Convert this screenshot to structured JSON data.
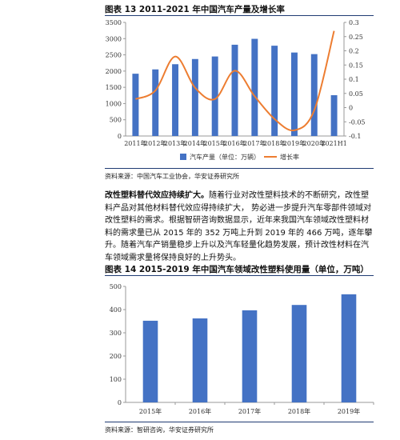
{
  "figure13": {
    "title": "图表 13 2011-2021 年中国汽车产量及增长率",
    "source": "资料来源：中国汽车工业协会，华安证券研究所"
  },
  "paragraph": {
    "lead": "改性塑料替代效应持续扩大。",
    "body": "随着行业对改性塑料技术的不断研究，改性塑料产品对其他材料替代效应得持续扩大， 势必进一步提升汽车零部件领域对改性塑料的需求。根据智研咨询数据显示，近年来我国汽车领域改性塑料材料的需求量已从 2015 年的 352 万吨上升到 2019 年的 466 万吨，逐年攀升。随着汽车产销量稳步上升以及汽车轻量化趋势发展，预计改性材料在汽车领域需求量将保持良好的上升势头。"
  },
  "figure14": {
    "title": "图表 14 2015-2019 年中国汽车领域改性塑料使用量（单位，万吨）",
    "source": "资料来源：智研咨询，华安证券研究所"
  },
  "chart_data": [
    {
      "type": "bar+line",
      "title": "图表 13 2011-2021 年中国汽车产量及增长率",
      "categories": [
        "2011年",
        "2012年",
        "2013年",
        "2014年",
        "2015年",
        "2016年",
        "2017年",
        "2018年",
        "2019年",
        "2020年",
        "2021H1"
      ],
      "series": [
        {
          "name": "汽车产量（单位：万辆）",
          "type": "bar",
          "axis": "left",
          "color": "#4472c4",
          "values": [
            1919,
            2052,
            2212,
            2372,
            2450,
            2812,
            2994,
            2782,
            2572,
            2523,
            1257
          ]
        },
        {
          "name": "增长率",
          "type": "line",
          "axis": "right",
          "color": "#ed7d31",
          "values": [
            0.03,
            0.06,
            0.18,
            0.07,
            0.03,
            0.13,
            0.04,
            -0.04,
            -0.08,
            -0.01,
            0.27
          ]
        }
      ],
      "yleft": {
        "range": [
          0,
          3500
        ],
        "ticks": [
          "0",
          "500",
          "1000",
          "1500",
          "2000",
          "2500",
          "3000",
          "3500"
        ]
      },
      "yright": {
        "range": [
          -0.1,
          0.3
        ],
        "ticks": [
          "-0.1",
          "-0.05",
          "0",
          "0.05",
          "0.1",
          "0.15",
          "0.2",
          "0.25",
          "0.3"
        ]
      },
      "legend": "bottom"
    },
    {
      "type": "bar",
      "title": "图表 14 2015-2019 年中国汽车领域改性塑料使用量（单位，万吨）",
      "categories": [
        "2015年",
        "2016年",
        "2017年",
        "2018年",
        "2019年"
      ],
      "values": [
        352,
        362,
        397,
        420,
        466
      ],
      "color": "#4472c4",
      "ylim": [
        0,
        500
      ],
      "yticks": [
        "0",
        "100",
        "200",
        "300",
        "400",
        "500"
      ]
    }
  ]
}
